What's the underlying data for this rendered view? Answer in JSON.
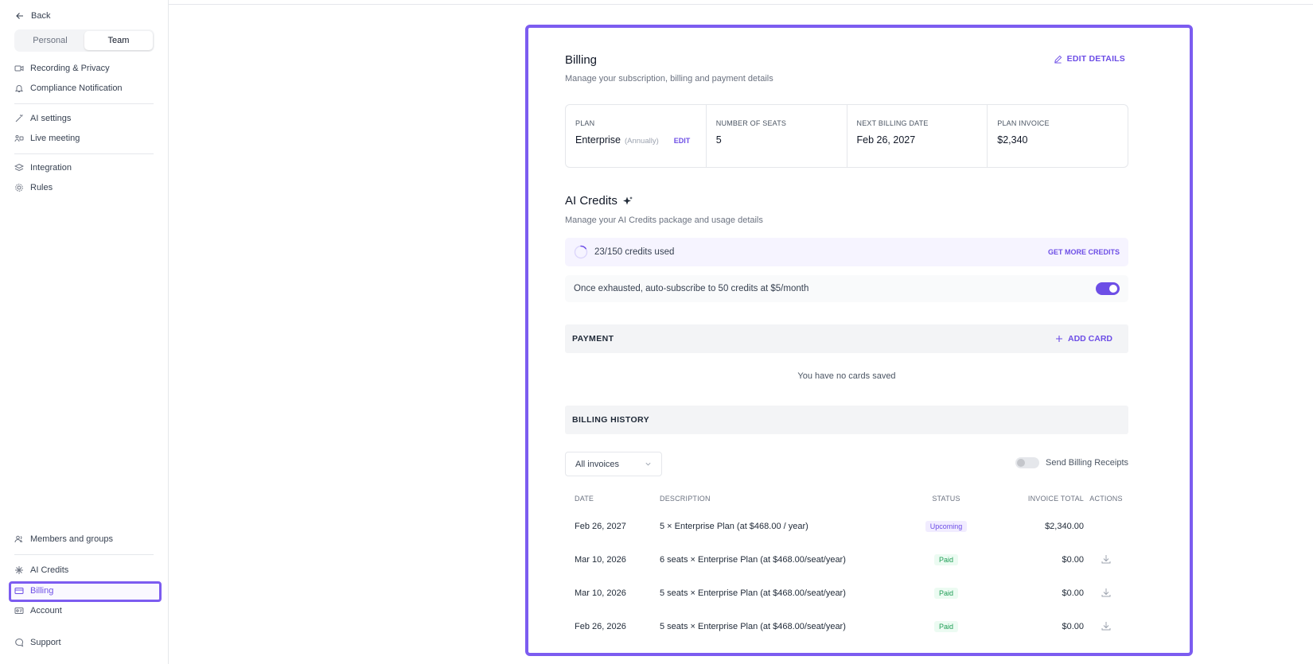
{
  "sidebar": {
    "back_label": "Back",
    "tabs": [
      {
        "label": "Personal"
      },
      {
        "label": "Team"
      }
    ],
    "items": [
      {
        "label": "Recording & Privacy",
        "icon": "video-camera-icon"
      },
      {
        "label": "Compliance Notification",
        "icon": "bell-icon"
      },
      {
        "label": "AI settings",
        "icon": "magic-wand-icon"
      },
      {
        "label": "Live meeting",
        "icon": "live-meeting-icon"
      },
      {
        "label": "Integration",
        "icon": "layers-icon"
      },
      {
        "label": "Rules",
        "icon": "cog-icon"
      },
      {
        "label": "Members and groups",
        "icon": "users-icon"
      },
      {
        "label": "AI Credits",
        "icon": "sparkle-icon"
      },
      {
        "label": "Billing",
        "icon": "credit-card-icon"
      },
      {
        "label": "Account",
        "icon": "id-card-icon"
      },
      {
        "label": "Support",
        "icon": "chat-bubble-icon"
      }
    ],
    "active_item": "Billing"
  },
  "billing": {
    "title": "Billing",
    "subtitle": "Manage your subscription, billing and payment details",
    "edit_details_label": "EDIT DETAILS",
    "plan": {
      "label": "PLAN",
      "value": "Enterprise",
      "period": "(Annually)",
      "edit_label": "EDIT"
    },
    "seats": {
      "label": "NUMBER OF SEATS",
      "value": "5"
    },
    "next_billing": {
      "label": "NEXT BILLING DATE",
      "value": "Feb 26, 2027"
    },
    "invoice": {
      "label": "PLAN INVOICE",
      "value": "$2,340"
    }
  },
  "ai_credits": {
    "title": "AI Credits",
    "subtitle": "Manage your AI Credits package and usage details",
    "used_text": "23/150 credits used",
    "used": 23,
    "total": 150,
    "get_more_label": "GET MORE CREDITS",
    "auto_subscribe_text": "Once exhausted, auto-subscribe to 50 credits at $5/month",
    "auto_subscribe_enabled": true
  },
  "payment": {
    "title": "PAYMENT",
    "add_card_label": "ADD CARD",
    "empty_text": "You have no cards saved"
  },
  "history": {
    "title": "BILLING HISTORY",
    "filter_value": "All invoices",
    "receipts_label": "Send Billing Receipts",
    "receipts_enabled": false,
    "columns": {
      "date": "DATE",
      "description": "DESCRIPTION",
      "status": "STATUS",
      "total": "INVOICE TOTAL",
      "actions": "ACTIONS"
    },
    "rows": [
      {
        "date": "Feb 26, 2027",
        "description": "5 × Enterprise Plan (at $468.00 / year)",
        "status": "Upcoming",
        "total": "$2,340.00"
      },
      {
        "date": "Mar 10, 2026",
        "description": "6 seats × Enterprise Plan (at $468.00/seat/year)",
        "status": "Paid",
        "total": "$0.00"
      },
      {
        "date": "Mar 10, 2026",
        "description": "5 seats × Enterprise Plan (at $468.00/seat/year)",
        "status": "Paid",
        "total": "$0.00"
      },
      {
        "date": "Feb 26, 2026",
        "description": "5 seats × Enterprise Plan (at $468.00/seat/year)",
        "status": "Paid",
        "total": "$0.00"
      }
    ]
  },
  "colors": {
    "accent": "#6d4ee6",
    "highlight_border": "#7c5cf0",
    "paid": "#1f9d55"
  }
}
